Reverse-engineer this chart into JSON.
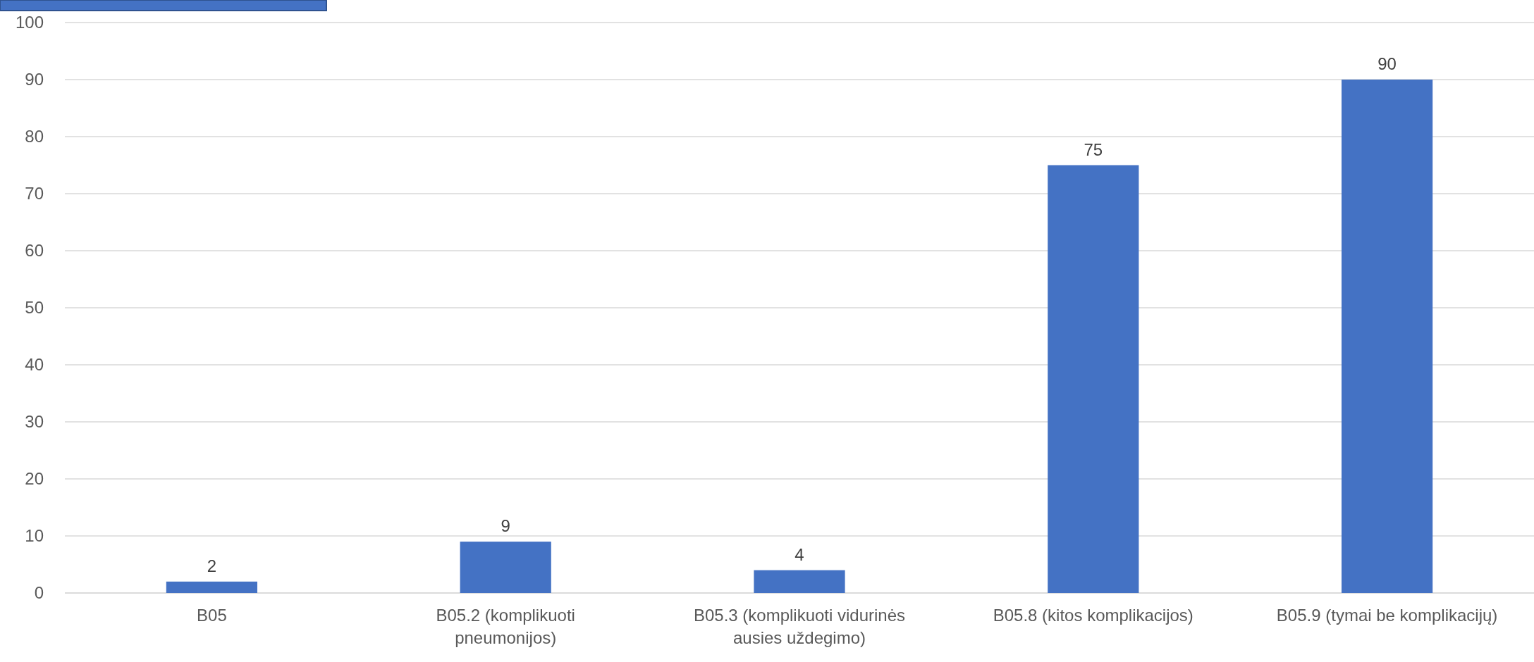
{
  "chart_data": {
    "type": "bar",
    "categories": [
      "B05",
      "B05.2 (komplikuoti pneumonijos)",
      "B05.3 (komplikuoti vidurinės ausies uždegimo)",
      "B05.8 (kitos komplikacijos)",
      "B05.9 (tymai be komplikacijų)"
    ],
    "values": [
      2,
      9,
      4,
      75,
      90
    ],
    "color": "#4472c4",
    "data_labels": true,
    "ylim": [
      0,
      100
    ],
    "yticks": [
      0,
      10,
      20,
      30,
      40,
      50,
      60,
      70,
      80,
      90,
      100
    ],
    "grid": "y"
  }
}
